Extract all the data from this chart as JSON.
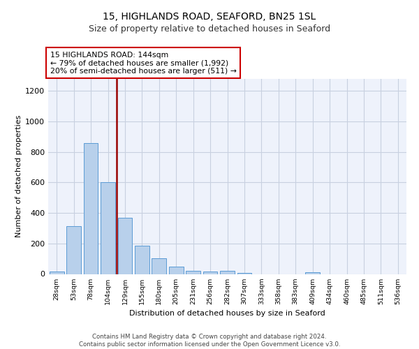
{
  "title1": "15, HIGHLANDS ROAD, SEAFORD, BN25 1SL",
  "title2": "Size of property relative to detached houses in Seaford",
  "xlabel": "Distribution of detached houses by size in Seaford",
  "ylabel": "Number of detached properties",
  "bar_labels": [
    "28sqm",
    "53sqm",
    "78sqm",
    "104sqm",
    "129sqm",
    "155sqm",
    "180sqm",
    "205sqm",
    "231sqm",
    "256sqm",
    "282sqm",
    "307sqm",
    "333sqm",
    "358sqm",
    "383sqm",
    "409sqm",
    "434sqm",
    "460sqm",
    "485sqm",
    "511sqm",
    "536sqm"
  ],
  "bar_values": [
    15,
    315,
    855,
    600,
    370,
    185,
    105,
    46,
    22,
    18,
    20,
    5,
    0,
    0,
    0,
    12,
    0,
    0,
    0,
    0,
    0
  ],
  "bar_color": "#b8d0eb",
  "bar_edge_color": "#5b9bd5",
  "vline_x": 3.5,
  "vline_color": "#990000",
  "annotation_text": "15 HIGHLANDS ROAD: 144sqm\n← 79% of detached houses are smaller (1,992)\n20% of semi-detached houses are larger (511) →",
  "annotation_box_color": "#cc0000",
  "ylim": [
    0,
    1280
  ],
  "yticks": [
    0,
    200,
    400,
    600,
    800,
    1000,
    1200
  ],
  "footer_text": "Contains HM Land Registry data © Crown copyright and database right 2024.\nContains public sector information licensed under the Open Government Licence v3.0.",
  "bg_color": "#eef2fb",
  "grid_color": "#c8d0e0",
  "title1_fontsize": 10,
  "title2_fontsize": 9
}
